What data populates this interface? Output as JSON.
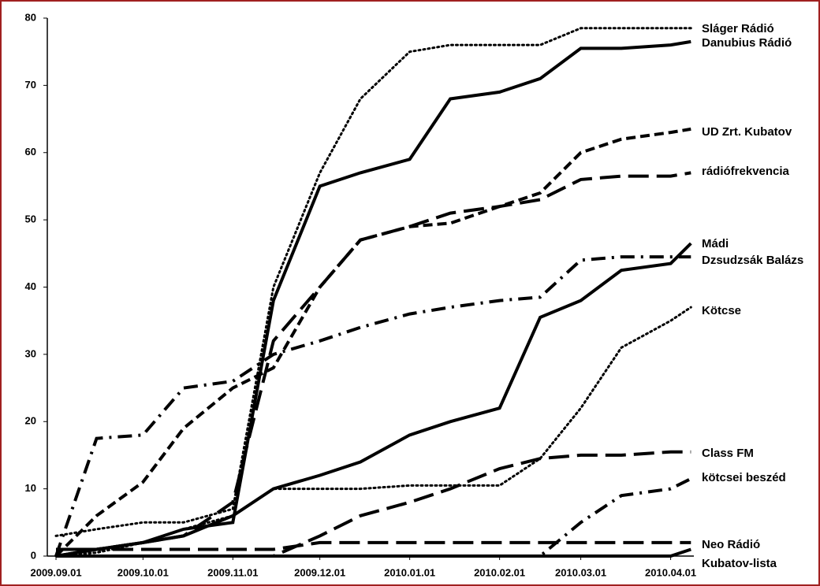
{
  "chart_data": {
    "type": "line",
    "x": [
      "2009.09.01",
      "2009.09.15",
      "2009.10.01",
      "2009.10.15",
      "2009.11.01",
      "2009.11.15",
      "2009.12.01",
      "2009.12.15",
      "2010.01.01",
      "2010.01.15",
      "2010.02.01",
      "2010.02.15",
      "2010.03.01",
      "2010.03.15",
      "2010.04.01",
      "2010.04.08"
    ],
    "xlim": [
      "2009.08.29",
      "2010.04.09"
    ],
    "xticks": [
      "2009.09.01",
      "2009.10.01",
      "2009.11.01",
      "2009.12.01",
      "2010.01.01",
      "2010.02.01",
      "2010.03.01",
      "2010.04.01"
    ],
    "ylim": [
      0,
      80
    ],
    "yticks": [
      0,
      10,
      20,
      30,
      40,
      50,
      60,
      70,
      80
    ],
    "series": [
      {
        "name": "Sláger Rádió",
        "color": "#000000",
        "style": "dotted",
        "values": [
          3,
          4,
          5,
          5,
          7,
          40,
          57,
          68,
          75,
          76,
          76,
          76,
          78.5,
          78.5,
          78.5,
          78.5
        ]
      },
      {
        "name": "Danubius Rádió",
        "color": "#000000",
        "style": "solid",
        "values": [
          0,
          1,
          2,
          4,
          5,
          38,
          55,
          57,
          59,
          68,
          69,
          71,
          75.5,
          75.5,
          76,
          76.5
        ]
      },
      {
        "name": "UD Zrt. Kubatov",
        "color": "#000000",
        "style": "dashed",
        "values": [
          0,
          6,
          11,
          19,
          25,
          28,
          40,
          47,
          49,
          49.5,
          52,
          54,
          60,
          62,
          63,
          63.5
        ]
      },
      {
        "name": "rádiófrekvencia",
        "color": "#000000",
        "style": "longdash",
        "values": [
          0,
          1,
          2,
          3,
          8,
          32,
          40,
          47,
          49,
          51,
          52,
          53,
          56,
          56.5,
          56.5,
          57
        ]
      },
      {
        "name": "Mádi",
        "color": "#000000",
        "style": "solid",
        "values": [
          1,
          1,
          2,
          3,
          6,
          10,
          12,
          14,
          18,
          20,
          22,
          35.5,
          38,
          42.5,
          43.5,
          46.5
        ]
      },
      {
        "name": "Dzsudzsák Balázs",
        "color": "#000000",
        "style": "dashdot",
        "values": [
          0,
          17.5,
          18,
          25,
          26,
          30,
          32,
          34,
          36,
          37,
          38,
          38.5,
          44,
          44.5,
          44.5,
          44.5
        ]
      },
      {
        "name": "Kötcse",
        "color": "#000000",
        "style": "dotted",
        "values": [
          0,
          0.5,
          2,
          4,
          6,
          10,
          10,
          10,
          10.5,
          10.5,
          10.5,
          14.5,
          22,
          31,
          35,
          37
        ]
      },
      {
        "name": "Class FM",
        "color": "#000000",
        "style": "longdash",
        "values": [
          0,
          0,
          0,
          0,
          0,
          0,
          3,
          6,
          8,
          10,
          13,
          14.5,
          15,
          15,
          15.5,
          15.5
        ]
      },
      {
        "name": "kötcsei beszéd",
        "color": "#000000",
        "style": "dashdot",
        "values": [
          0,
          0,
          0,
          0,
          0,
          0,
          0,
          0,
          0,
          0,
          0,
          0,
          5,
          9,
          10,
          11.5
        ]
      },
      {
        "name": "Neo Rádió",
        "color": "#000000",
        "style": "longdash",
        "values": [
          1,
          1,
          1,
          1,
          1,
          1,
          2,
          2,
          2,
          2,
          2,
          2,
          2,
          2,
          2,
          2
        ]
      },
      {
        "name": "Kubatov-lista",
        "color": "#000000",
        "style": "solid",
        "values": [
          0,
          0,
          0,
          0,
          0,
          0,
          0,
          0,
          0,
          0,
          0,
          0,
          0,
          0,
          0,
          1
        ]
      }
    ]
  }
}
